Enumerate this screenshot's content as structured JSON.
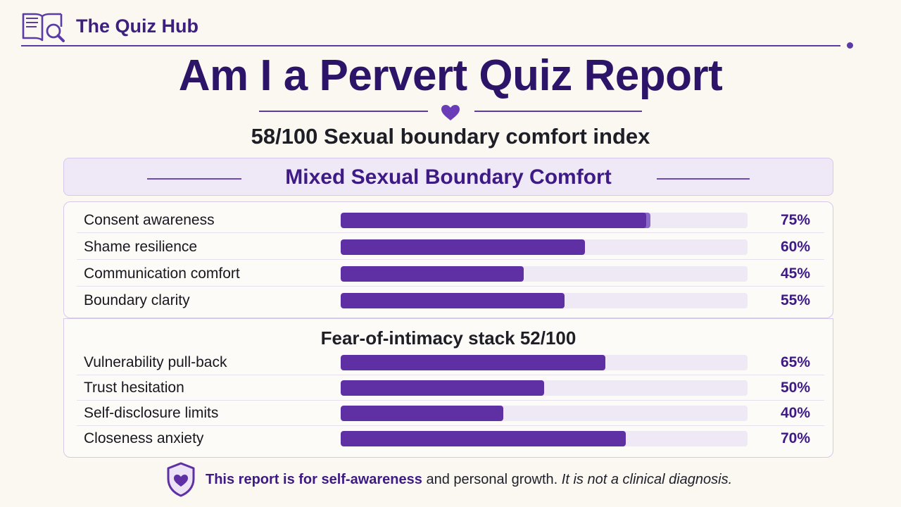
{
  "brand": {
    "name": "The Quiz Hub",
    "logo_icon": "book-magnifier-icon"
  },
  "title": "Am I a Pervert Quiz Report",
  "title_divider_icon": "heart-icon",
  "score_line": "58/100 Sexual boundary comfort index",
  "result_banner": "Mixed Sexual Boundary Comfort",
  "boundary_scores": [
    {
      "label": "Consent awareness",
      "value": 75,
      "display": "75%"
    },
    {
      "label": "Shame resilience",
      "value": 60,
      "display": "60%"
    },
    {
      "label": "Communication comfort",
      "value": 45,
      "display": "45%"
    },
    {
      "label": "Boundary clarity",
      "value": 55,
      "display": "55%"
    }
  ],
  "intimacy_section": {
    "heading": "Fear-of-intimacy stack 52/100",
    "scores": [
      {
        "label": "Vulnerability pull-back",
        "value": 65,
        "display": "65%"
      },
      {
        "label": "Trust hesitation",
        "value": 50,
        "display": "50%"
      },
      {
        "label": "Self-disclosure limits",
        "value": 40,
        "display": "40%"
      },
      {
        "label": "Closeness anxiety",
        "value": 70,
        "display": "70%"
      }
    ]
  },
  "footer": {
    "icon": "shield-heart-icon",
    "strong": "This report is for self-awareness",
    "plain": " and personal growth. ",
    "italic": "It is not a clinical diagnosis."
  },
  "colors": {
    "accent": "#5f30a4",
    "accent_dark": "#2c1468",
    "track": "#efe9f6",
    "background": "#fbf8f2"
  }
}
